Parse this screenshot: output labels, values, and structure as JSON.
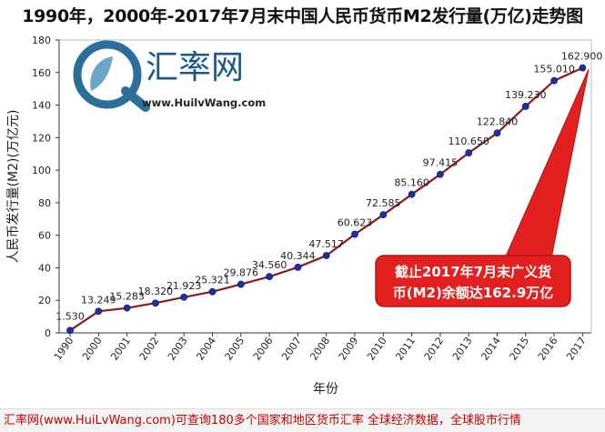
{
  "title": "1990年，2000年-2017年7月末中国人民币货币M2发行量(万亿)走势图",
  "watermark": {
    "brand": "汇率网",
    "url": "www.HuilvWang.com"
  },
  "callout": {
    "line1": "截止2017年7月末广义货",
    "line2": "币(M2)余额达162.9万亿"
  },
  "footer": "汇率网(www.HuiLvWang.com)可查询180多个国家和地区货币汇率  全球经济数据，全球股市行情",
  "colors": {
    "line": "#8b1a1a",
    "marker": "#1f2f9e",
    "callout": "#e3201f",
    "footer_text": "#c00000"
  },
  "chart_data": {
    "type": "line",
    "title": "1990年，2000年-2017年7月末中国人民币货币M2发行量(万亿)走势图",
    "xlabel": "年份",
    "ylabel": "人民币发行量(M2)(万亿元)",
    "ylim": [
      0,
      180
    ],
    "yticks": [
      0,
      20,
      40,
      60,
      80,
      100,
      120,
      140,
      160,
      180
    ],
    "grid": false,
    "legend": "none",
    "categories": [
      "1990",
      "2000",
      "2001",
      "2002",
      "2003",
      "2004",
      "2005",
      "2006",
      "2007",
      "2008",
      "2009",
      "2010",
      "2011",
      "2012",
      "2013",
      "2014",
      "2015",
      "2016",
      "2017"
    ],
    "values": [
      1.53,
      13.249,
      15.283,
      18.32,
      21.923,
      25.321,
      29.876,
      34.56,
      40.344,
      47.517,
      60.623,
      72.585,
      85.16,
      97.415,
      110.65,
      122.84,
      139.23,
      155.01,
      162.9
    ],
    "data_labels": [
      "1.530",
      "13.249",
      "15.283",
      "18.320",
      "21.923",
      "25.321",
      "29.876",
      "34.560",
      "40.344",
      "47.517",
      "60.623",
      "72.585",
      "85.160",
      "97.415",
      "110.650",
      "122.840",
      "139.230",
      "155.010",
      "162.900"
    ]
  }
}
